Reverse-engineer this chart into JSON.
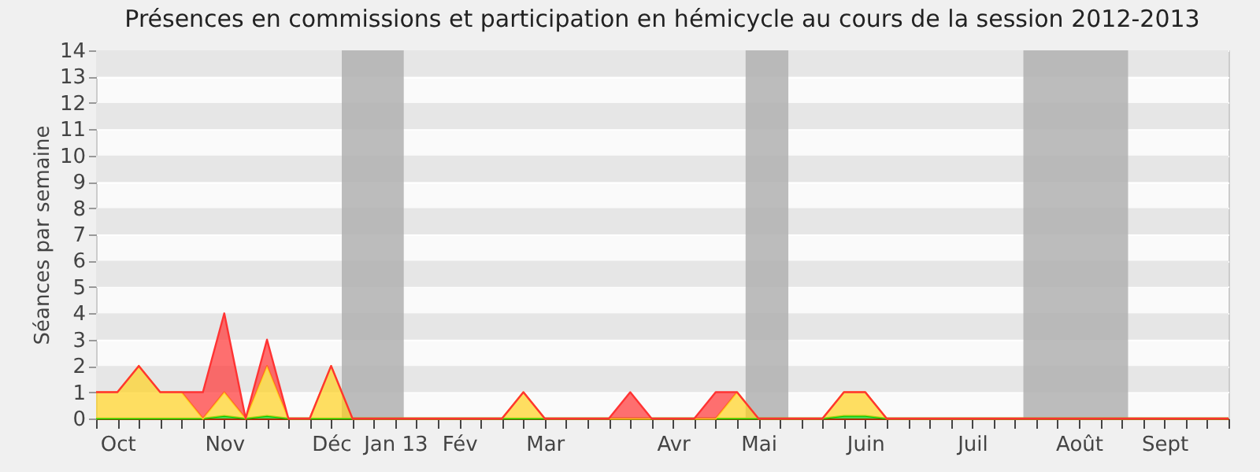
{
  "chart_data": {
    "type": "area",
    "stacked": true,
    "title": "Présences en commissions et participation en hémicycle au cours de la session 2012-2013",
    "ylabel": "Séances par semaine",
    "categories": [
      null,
      "Oct",
      null,
      null,
      null,
      null,
      "Nov",
      null,
      null,
      null,
      null,
      "Déc",
      null,
      null,
      "Jan 13",
      null,
      null,
      "Fév",
      null,
      null,
      null,
      "Mar",
      null,
      null,
      null,
      null,
      null,
      "Avr",
      null,
      null,
      null,
      "Mai",
      null,
      null,
      null,
      null,
      "Juin",
      null,
      null,
      null,
      null,
      "Juil",
      null,
      null,
      null,
      null,
      "Août",
      null,
      null,
      null,
      "Sept",
      null,
      null,
      null
    ],
    "series": [
      {
        "color": "#00cc00",
        "values": [
          0,
          0,
          0,
          0,
          0,
          0,
          0.1,
          0,
          0.1,
          0,
          0,
          0,
          0,
          0,
          0,
          0,
          0,
          0,
          0,
          0,
          0,
          0,
          0,
          0,
          0,
          0,
          0,
          0,
          0,
          0,
          0,
          0,
          0,
          0,
          0,
          0.1,
          0.1,
          0,
          0,
          0,
          0,
          0,
          0,
          0,
          0,
          0,
          0,
          0,
          0,
          0,
          0,
          0,
          0,
          0
        ]
      },
      {
        "color": "#ffd21f",
        "values": [
          1,
          1,
          2,
          1,
          1,
          0,
          0.9,
          0,
          1.9,
          0,
          0,
          2,
          0,
          0,
          0,
          0,
          0,
          0,
          0,
          0,
          1,
          0,
          0,
          0,
          0,
          0,
          0,
          0,
          0,
          0,
          1,
          0,
          0,
          0,
          0,
          0.9,
          0.9,
          0,
          0,
          0,
          0,
          0,
          0,
          0,
          0,
          0,
          0,
          0,
          0,
          0,
          0,
          0,
          0,
          0
        ]
      },
      {
        "color": "#ff3333",
        "values": [
          0,
          0,
          0,
          0,
          0,
          1,
          3,
          0,
          1,
          0,
          0,
          0,
          0,
          0,
          0,
          0,
          0,
          0,
          0,
          0,
          0,
          0,
          0,
          0,
          0,
          1,
          0,
          0,
          0,
          1,
          0,
          0,
          0,
          0,
          0,
          0,
          0,
          0,
          0,
          0,
          0,
          0,
          0,
          0,
          0,
          0,
          0,
          0,
          0,
          0,
          0,
          0,
          0,
          0
        ]
      }
    ],
    "ylim": [
      0,
      14
    ],
    "yticks": [
      0,
      1,
      2,
      3,
      4,
      5,
      6,
      7,
      8,
      9,
      10,
      11,
      12,
      13,
      14
    ],
    "grid": "y"
  }
}
